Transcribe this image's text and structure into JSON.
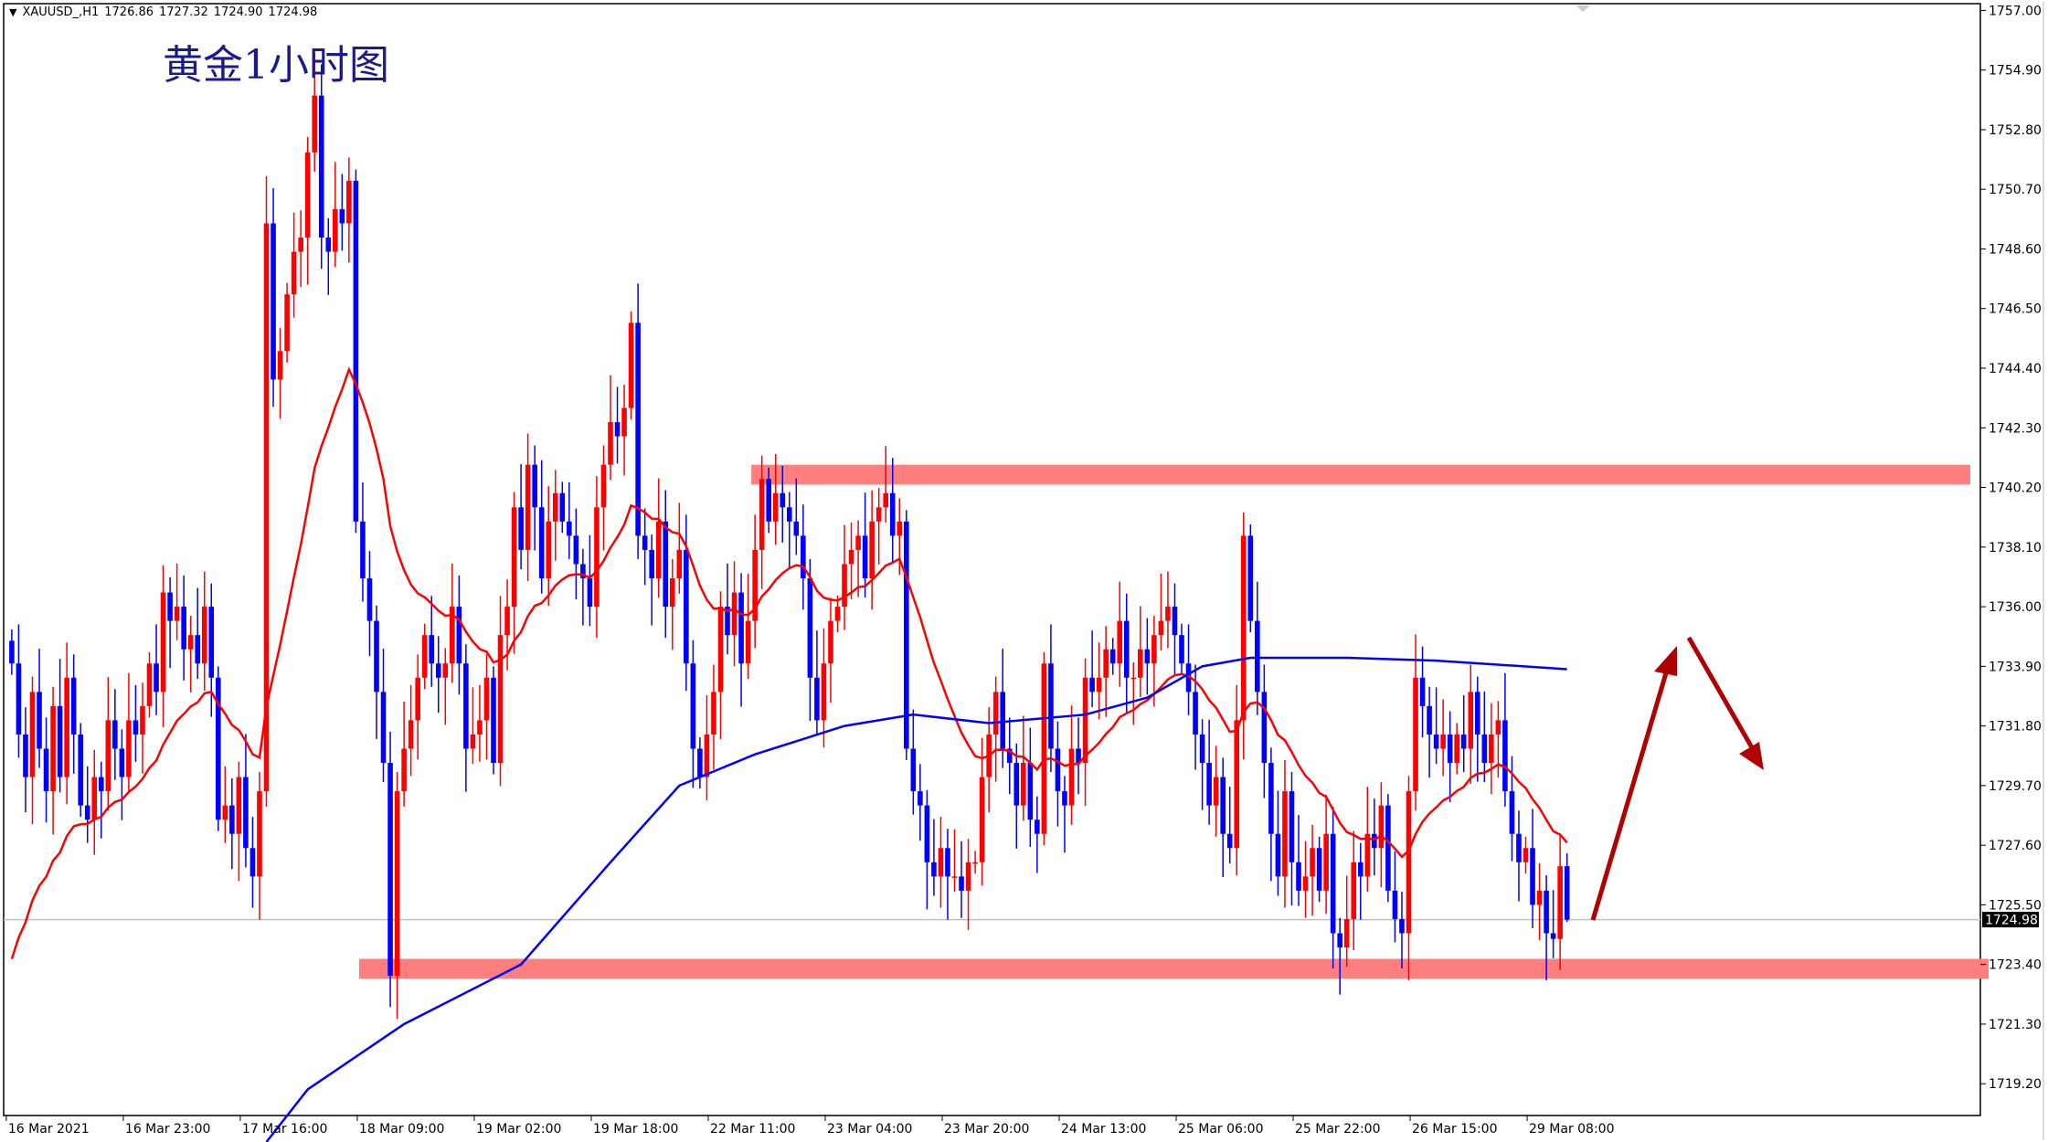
{
  "header": {
    "symbol": "XAUUSD_,H1",
    "open": "1726.86",
    "high": "1727.32",
    "low": "1724.90",
    "close": "1724.98"
  },
  "annotation_title": "黄金1小时图",
  "colors": {
    "bull": "#ff0000",
    "bear": "#0000ff",
    "ma_fast": "#ff0000",
    "ma_slow": "#0000ff",
    "zone": "#ff7f7f",
    "arrow": "#b00000"
  },
  "chart_data": {
    "type": "candlestick",
    "title": "黄金1小时图",
    "ylim": [
      1718.4,
      1757.0
    ],
    "y_ticks": [
      "1757.00",
      "1754.90",
      "1752.80",
      "1750.70",
      "1748.60",
      "1746.50",
      "1744.40",
      "1742.30",
      "1740.20",
      "1738.10",
      "1736.00",
      "1733.90",
      "1731.80",
      "1729.70",
      "1727.60",
      "1725.50",
      "1723.40",
      "1721.30",
      "1719.20"
    ],
    "x_ticks": [
      "16 Mar 2021",
      "16 Mar 23:00",
      "17 Mar 16:00",
      "18 Mar 09:00",
      "19 Mar 02:00",
      "19 Mar 18:00",
      "22 Mar 11:00",
      "23 Mar 04:00",
      "23 Mar 20:00",
      "24 Mar 13:00",
      "25 Mar 06:00",
      "25 Mar 22:00",
      "26 Mar 15:00",
      "29 Mar 08:00"
    ],
    "x_tick_every_bars": 17,
    "current_price": "1724.98",
    "closes": [
      1734,
      1731.5,
      1730,
      1733,
      1731,
      1729.5,
      1732.5,
      1730,
      1733.5,
      1731.5,
      1729,
      1728.5,
      1730,
      1729.5,
      1732,
      1731,
      1730,
      1732,
      1731.5,
      1732.5,
      1734,
      1733,
      1736.5,
      1735.5,
      1736,
      1734.5,
      1735,
      1734,
      1736,
      1733.5,
      1728.5,
      1729,
      1728,
      1730,
      1727.5,
      1726.5,
      1729.5,
      1749.5,
      1744,
      1745,
      1747,
      1748.5,
      1749,
      1752,
      1754,
      1749,
      1748.5,
      1750,
      1749.5,
      1751,
      1739,
      1737,
      1735.5,
      1733,
      1730.5,
      1723,
      1729.5,
      1731,
      1732,
      1733.5,
      1735,
      1734,
      1733.5,
      1734,
      1736,
      1734,
      1731,
      1731.5,
      1732,
      1733.5,
      1730.5,
      1735,
      1736,
      1739.5,
      1738,
      1741,
      1739.5,
      1737,
      1739,
      1740,
      1739,
      1738.5,
      1737.5,
      1737,
      1736,
      1739.5,
      1741,
      1742.5,
      1742,
      1743,
      1746,
      1738.5,
      1738,
      1737,
      1739,
      1736,
      1737,
      1738,
      1734,
      1731,
      1730,
      1731.5,
      1733,
      1736,
      1735,
      1736.5,
      1734,
      1735.5,
      1738,
      1740.5,
      1739,
      1740,
      1739.5,
      1739,
      1738.5,
      1737,
      1733.5,
      1732,
      1734,
      1735.5,
      1736,
      1737.5,
      1738,
      1738.5,
      1737,
      1739,
      1739.5,
      1740,
      1738.5,
      1739,
      1731,
      1729.5,
      1729,
      1727,
      1726.5,
      1727.5,
      1726.5,
      1726.5,
      1726,
      1727,
      1727,
      1730,
      1731.5,
      1733,
      1731,
      1730.5,
      1729,
      1730.5,
      1728.5,
      1728,
      1734,
      1731,
      1729.5,
      1729,
      1731,
      1730.5,
      1733.5,
      1733,
      1733.5,
      1734.5,
      1734,
      1735.5,
      1733.5,
      1733.5,
      1734.5,
      1734,
      1735,
      1735.5,
      1736,
      1735,
      1734,
      1733,
      1731.5,
      1730.5,
      1729,
      1730,
      1728,
      1727.5,
      1732,
      1738.5,
      1735.5,
      1733,
      1730.5,
      1728,
      1726.5,
      1729.5,
      1727,
      1726,
      1726.5,
      1727.5,
      1726,
      1728,
      1724.5,
      1724,
      1725,
      1727,
      1726.5,
      1728,
      1727.5,
      1729,
      1726,
      1725,
      1724.5,
      1729.5,
      1733.5,
      1732.5,
      1731.5,
      1731,
      1731.5,
      1730.5,
      1731.5,
      1731,
      1733,
      1731.5,
      1730.5,
      1731.5,
      1732,
      1729.5,
      1728,
      1727,
      1727.5,
      1725.5,
      1726,
      1724.5,
      1724.3,
      1726.86,
      1724.98
    ],
    "ma_slow_points": [
      [
        43,
        1719.0
      ],
      [
        57,
        1721.3
      ],
      [
        74,
        1723.4
      ],
      [
        87,
        1727.0
      ],
      [
        97,
        1729.7
      ],
      [
        108,
        1730.8
      ],
      [
        121,
        1731.8
      ],
      [
        131,
        1732.2
      ],
      [
        142,
        1731.9
      ],
      [
        156,
        1732.2
      ],
      [
        165,
        1732.8
      ],
      [
        173,
        1733.9
      ],
      [
        180,
        1734.2
      ],
      [
        194,
        1734.2
      ],
      [
        207,
        1734.1
      ],
      [
        226,
        1733.8
      ]
    ],
    "zones": [
      {
        "from_bar": 108,
        "price_low": 1740.3,
        "price_high": 1741.0
      },
      {
        "from_bar": 51,
        "price_low": 1722.9,
        "price_high": 1723.6
      }
    ]
  }
}
